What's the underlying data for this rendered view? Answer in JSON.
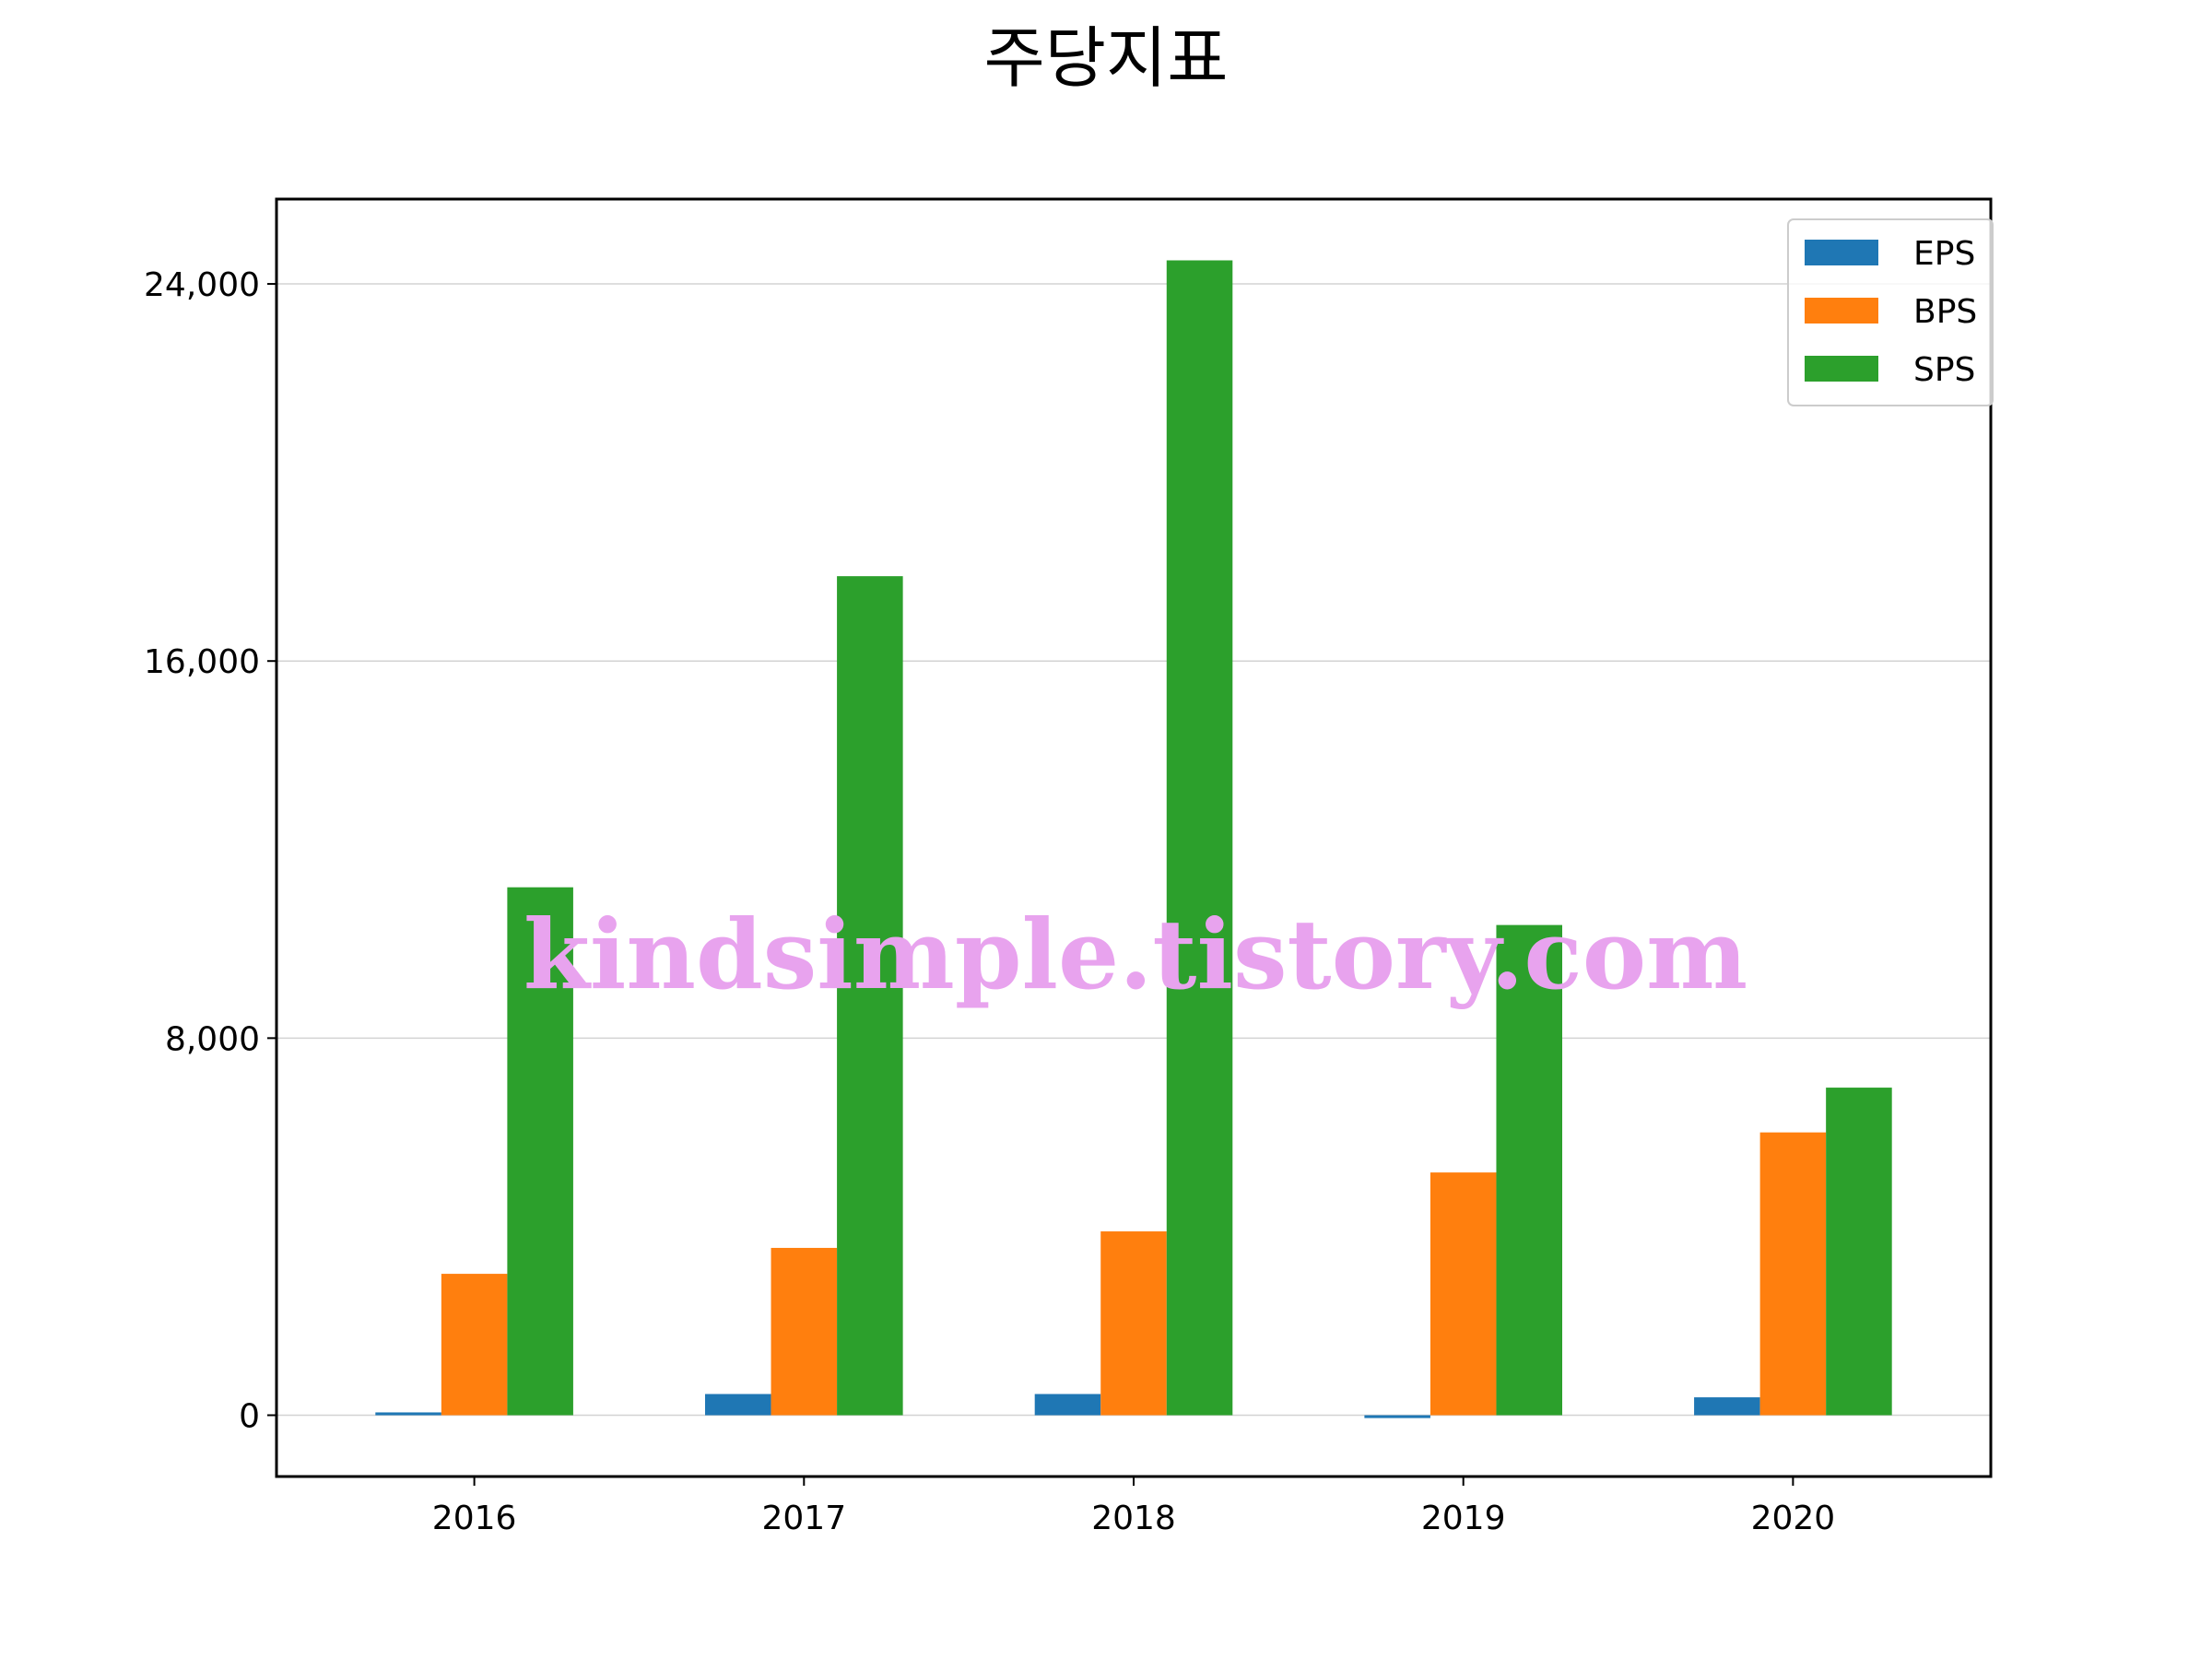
{
  "chart_data": {
    "type": "bar",
    "title": "주당지표",
    "xlabel": "",
    "ylabel": "",
    "categories": [
      "2016",
      "2017",
      "2018",
      "2019",
      "2020"
    ],
    "series": [
      {
        "name": "EPS",
        "color": "#1f77b4",
        "values": [
          60,
          450,
          450,
          -60,
          380
        ]
      },
      {
        "name": "BPS",
        "color": "#ff7f0e",
        "values": [
          3000,
          3550,
          3900,
          5150,
          6000
        ]
      },
      {
        "name": "SPS",
        "color": "#2ca02c",
        "values": [
          11200,
          17800,
          24500,
          10400,
          6950
        ]
      }
    ],
    "ylim": [
      -1300,
      25800
    ],
    "yticks": [
      0,
      8000,
      16000,
      24000
    ],
    "ytick_labels": [
      "0",
      "8,000",
      "16,000",
      "24,000"
    ],
    "grid": "horizontal",
    "legend_position": "top-right"
  },
  "watermark": "kindsimple.tistory.com"
}
